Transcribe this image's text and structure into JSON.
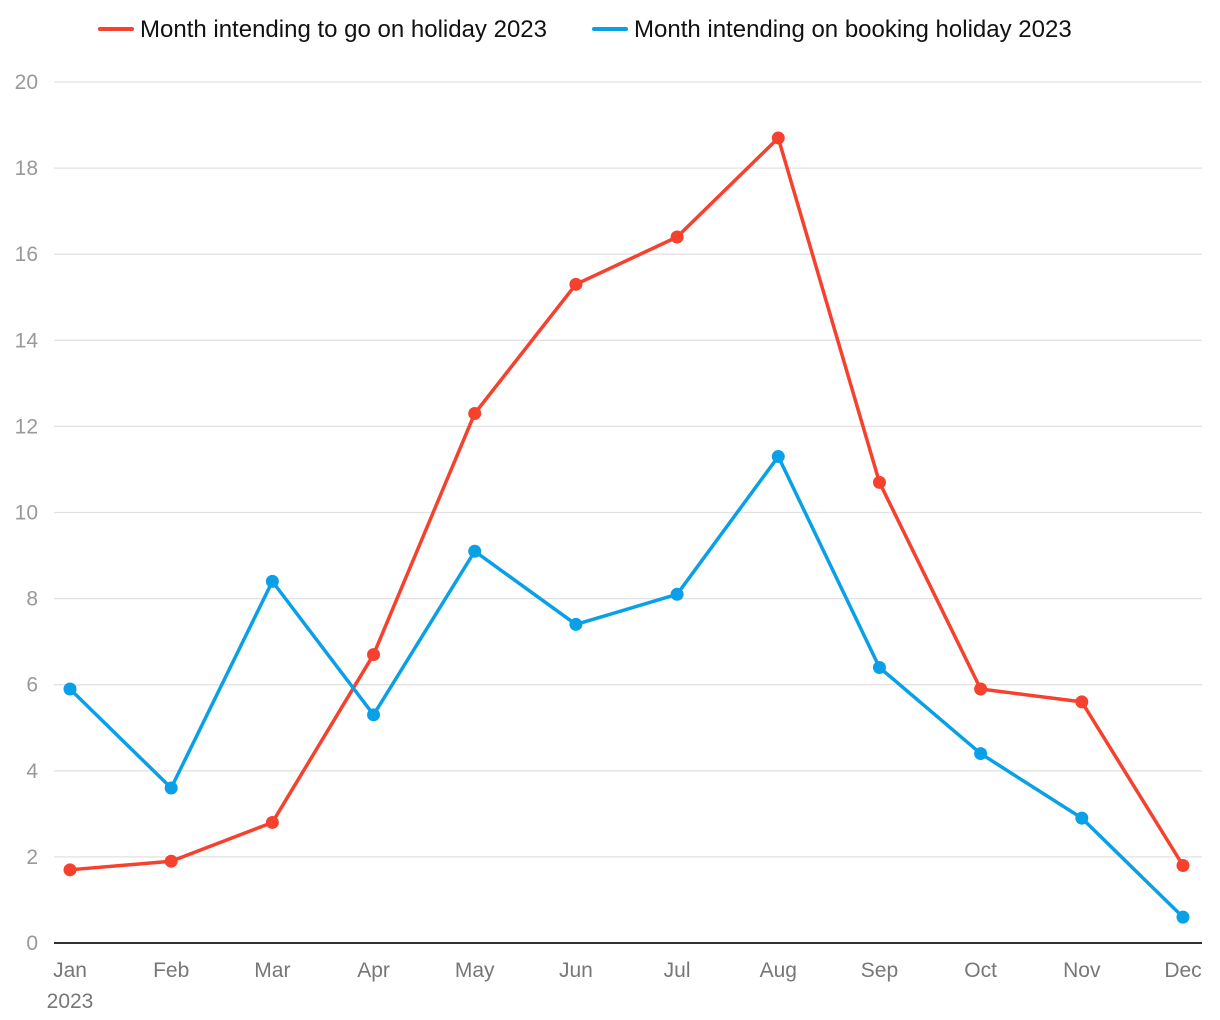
{
  "chart_data": {
    "type": "line",
    "categories": [
      "Jan",
      "Feb",
      "Mar",
      "Apr",
      "May",
      "Jun",
      "Jul",
      "Aug",
      "Sep",
      "Oct",
      "Nov",
      "Dec"
    ],
    "first_category_sublabel": "2023",
    "series": [
      {
        "name": "Month intending to go on holiday 2023",
        "color": "#f5412d",
        "values": [
          1.7,
          1.9,
          2.8,
          6.7,
          12.3,
          15.3,
          16.4,
          18.7,
          10.7,
          5.9,
          5.6,
          1.8
        ]
      },
      {
        "name": "Month intending on booking holiday 2023",
        "color": "#0aa0e8",
        "values": [
          5.9,
          3.6,
          8.4,
          5.3,
          9.1,
          7.4,
          8.1,
          11.3,
          6.4,
          4.4,
          2.9,
          0.6
        ]
      }
    ],
    "ylim": [
      0,
      20
    ],
    "yticks": [
      0,
      2,
      4,
      6,
      8,
      10,
      12,
      14,
      16,
      18,
      20
    ],
    "grid": true,
    "legend_position": "top"
  }
}
